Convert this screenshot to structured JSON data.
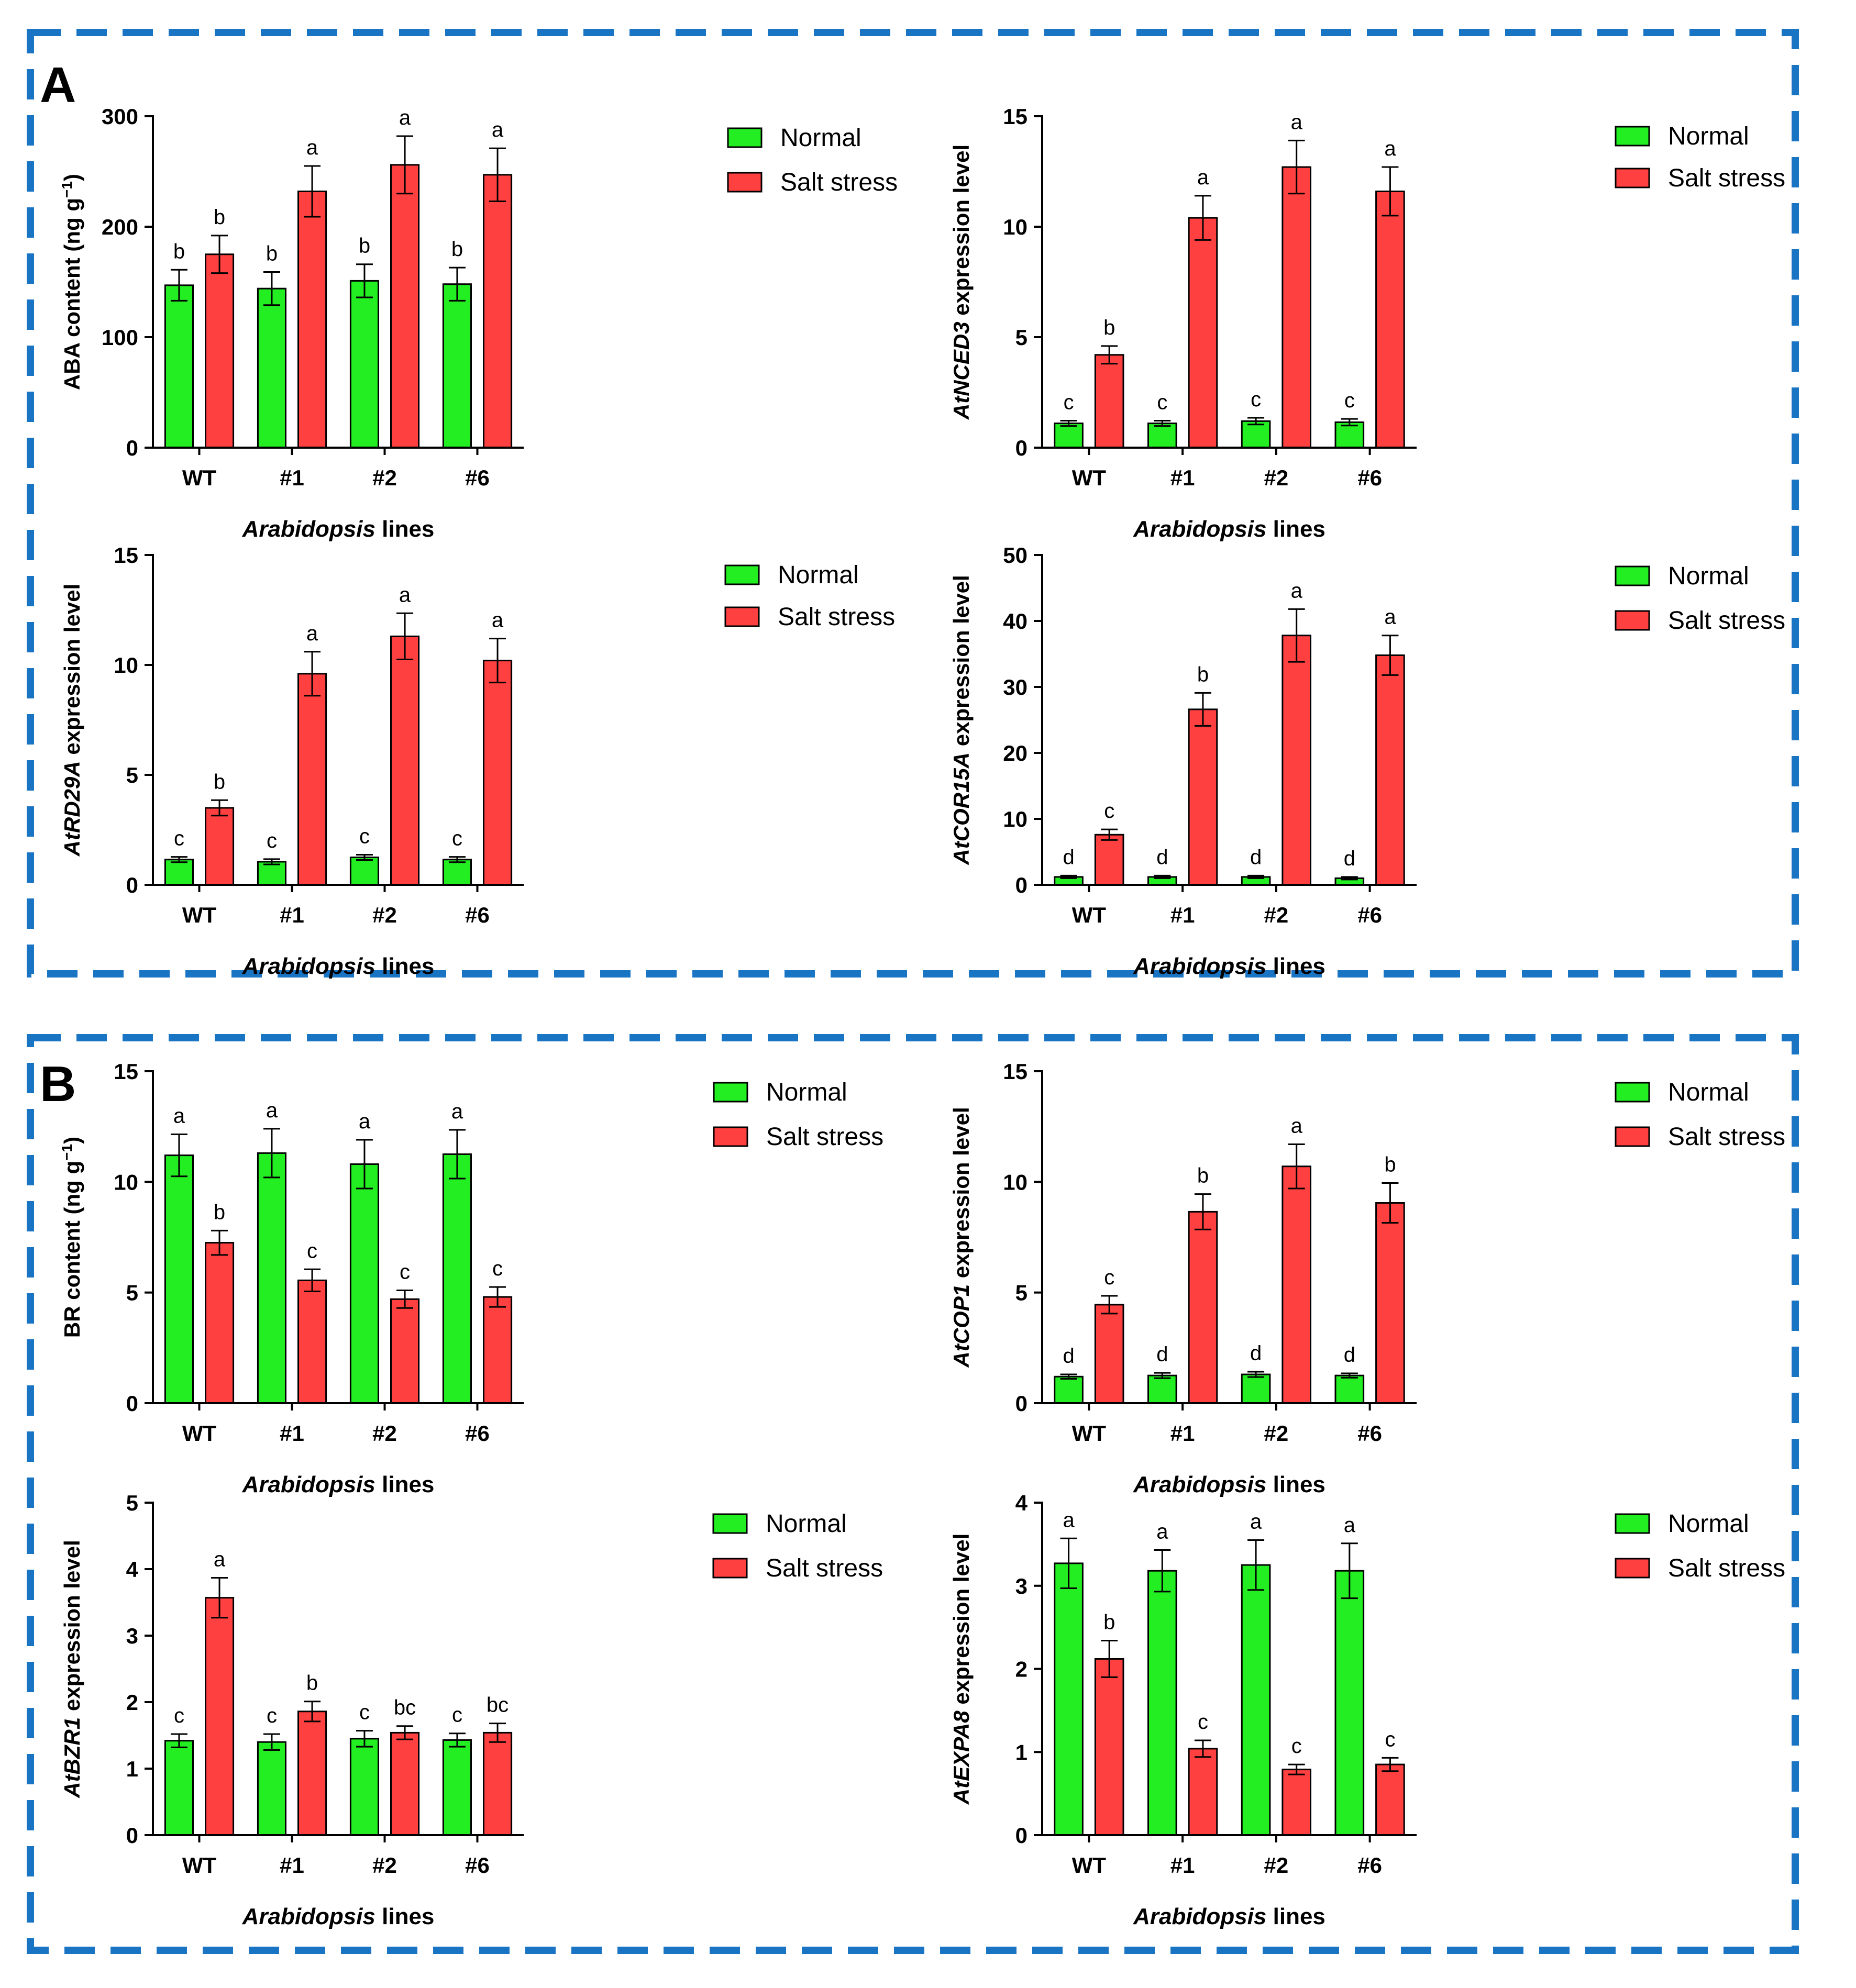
{
  "figure": {
    "colors": {
      "normal": "#22EE22",
      "salt": "#FF4040",
      "border": "#1A74C4"
    },
    "panels": [
      {
        "letter": "A"
      },
      {
        "letter": "B"
      }
    ]
  },
  "chart_data": [
    {
      "type": "bar",
      "panel": "A",
      "ylabel_parts": [
        {
          "text": "ABA content (ng g",
          "italic": false
        },
        {
          "text": "−1",
          "sup": true
        },
        {
          "text": ")",
          "italic": false
        }
      ],
      "xlabel_parts": [
        {
          "text": "Arabidopsis",
          "italic": true
        },
        {
          "text": " lines",
          "italic": false
        }
      ],
      "categories": [
        "WT",
        "#1",
        "#2",
        "#6"
      ],
      "ylim": [
        0,
        300
      ],
      "yticks": [
        0,
        100,
        200,
        300
      ],
      "series": [
        {
          "name": "Normal",
          "color": "#22EE22",
          "values": [
            147,
            144,
            151,
            148
          ],
          "errors": [
            14,
            15,
            15,
            15
          ],
          "labels": [
            "b",
            "b",
            "b",
            "b"
          ]
        },
        {
          "name": "Salt stress",
          "color": "#FF4040",
          "values": [
            175,
            232,
            256,
            247
          ],
          "errors": [
            17,
            23,
            26,
            24
          ],
          "labels": [
            "b",
            "a",
            "a",
            "a"
          ]
        }
      ],
      "legend": "top-right"
    },
    {
      "type": "bar",
      "panel": "A",
      "ylabel_parts": [
        {
          "text": "AtNCED3",
          "italic": true
        },
        {
          "text": " expression level",
          "italic": false
        }
      ],
      "xlabel_parts": [
        {
          "text": "Arabidopsis",
          "italic": true
        },
        {
          "text": " lines",
          "italic": false
        }
      ],
      "categories": [
        "WT",
        "#1",
        "#2",
        "#6"
      ],
      "ylim": [
        0,
        15
      ],
      "yticks": [
        0,
        5,
        10,
        15
      ],
      "series": [
        {
          "name": "Normal",
          "color": "#22EE22",
          "values": [
            1.1,
            1.1,
            1.2,
            1.15
          ],
          "errors": [
            0.12,
            0.12,
            0.15,
            0.15
          ],
          "labels": [
            "c",
            "c",
            "c",
            "c"
          ]
        },
        {
          "name": "Salt stress",
          "color": "#FF4040",
          "values": [
            4.2,
            10.4,
            12.7,
            11.6
          ],
          "errors": [
            0.4,
            1.0,
            1.2,
            1.1
          ],
          "labels": [
            "b",
            "a",
            "a",
            "a"
          ]
        }
      ],
      "legend": "top-right"
    },
    {
      "type": "bar",
      "panel": "A",
      "ylabel_parts": [
        {
          "text": "AtRD29A",
          "italic": true
        },
        {
          "text": " expression level",
          "italic": false
        }
      ],
      "xlabel_parts": [
        {
          "text": "Arabidopsis",
          "italic": true
        },
        {
          "text": " lines",
          "italic": false
        }
      ],
      "categories": [
        "WT",
        "#1",
        "#2",
        "#6"
      ],
      "ylim": [
        0,
        15
      ],
      "yticks": [
        0,
        5,
        10,
        15
      ],
      "series": [
        {
          "name": "Normal",
          "color": "#22EE22",
          "values": [
            1.15,
            1.05,
            1.25,
            1.15
          ],
          "errors": [
            0.12,
            0.12,
            0.12,
            0.12
          ],
          "labels": [
            "c",
            "c",
            "c",
            "c"
          ]
        },
        {
          "name": "Salt stress",
          "color": "#FF4040",
          "values": [
            3.5,
            9.6,
            11.3,
            10.2
          ],
          "errors": [
            0.35,
            1.0,
            1.05,
            1.0
          ],
          "labels": [
            "b",
            "a",
            "a",
            "a"
          ]
        }
      ],
      "legend": "top-right"
    },
    {
      "type": "bar",
      "panel": "A",
      "ylabel_parts": [
        {
          "text": "AtCOR15A",
          "italic": true
        },
        {
          "text": " expression level",
          "italic": false
        }
      ],
      "xlabel_parts": [
        {
          "text": "Arabidopsis",
          "italic": true
        },
        {
          "text": " lines",
          "italic": false
        }
      ],
      "categories": [
        "WT",
        "#1",
        "#2",
        "#6"
      ],
      "ylim": [
        0,
        50
      ],
      "yticks": [
        0,
        10,
        20,
        30,
        40,
        50
      ],
      "series": [
        {
          "name": "Normal",
          "color": "#22EE22",
          "values": [
            1.2,
            1.2,
            1.2,
            1.0
          ],
          "errors": [
            0.2,
            0.2,
            0.2,
            0.2
          ],
          "labels": [
            "d",
            "d",
            "d",
            "d"
          ]
        },
        {
          "name": "Salt stress",
          "color": "#FF4040",
          "values": [
            7.6,
            26.6,
            37.8,
            34.8
          ],
          "errors": [
            0.8,
            2.5,
            4.0,
            3.0
          ],
          "labels": [
            "c",
            "b",
            "a",
            "a"
          ]
        }
      ],
      "legend": "top-right"
    },
    {
      "type": "bar",
      "panel": "B",
      "ylabel_parts": [
        {
          "text": "BR content (ng g",
          "italic": false
        },
        {
          "text": "−1",
          "sup": true
        },
        {
          "text": ")",
          "italic": false
        }
      ],
      "xlabel_parts": [
        {
          "text": "Arabidopsis",
          "italic": true
        },
        {
          "text": " lines",
          "italic": false
        }
      ],
      "categories": [
        "WT",
        "#1",
        "#2",
        "#6"
      ],
      "ylim": [
        0,
        15
      ],
      "yticks": [
        0,
        5,
        10,
        15
      ],
      "series": [
        {
          "name": "Normal",
          "color": "#22EE22",
          "values": [
            11.2,
            11.3,
            10.8,
            11.25
          ],
          "errors": [
            0.95,
            1.1,
            1.1,
            1.1
          ],
          "labels": [
            "a",
            "a",
            "a",
            "a"
          ]
        },
        {
          "name": "Salt stress",
          "color": "#FF4040",
          "values": [
            7.25,
            5.55,
            4.7,
            4.8
          ],
          "errors": [
            0.55,
            0.5,
            0.4,
            0.45
          ],
          "labels": [
            "b",
            "c",
            "c",
            "c"
          ]
        }
      ],
      "legend": "top-right"
    },
    {
      "type": "bar",
      "panel": "B",
      "ylabel_parts": [
        {
          "text": "AtCOP1",
          "italic": true
        },
        {
          "text": " expression level",
          "italic": false
        }
      ],
      "xlabel_parts": [
        {
          "text": "Arabidopsis",
          "italic": true
        },
        {
          "text": " lines",
          "italic": false
        }
      ],
      "categories": [
        "WT",
        "#1",
        "#2",
        "#6"
      ],
      "ylim": [
        0,
        15
      ],
      "yticks": [
        0,
        5,
        10,
        15
      ],
      "series": [
        {
          "name": "Normal",
          "color": "#22EE22",
          "values": [
            1.2,
            1.25,
            1.3,
            1.25
          ],
          "errors": [
            0.1,
            0.12,
            0.12,
            0.1
          ],
          "labels": [
            "d",
            "d",
            "d",
            "d"
          ]
        },
        {
          "name": "Salt stress",
          "color": "#FF4040",
          "values": [
            4.45,
            8.65,
            10.7,
            9.05
          ],
          "errors": [
            0.4,
            0.8,
            1.0,
            0.9
          ],
          "labels": [
            "c",
            "b",
            "a",
            "b"
          ]
        }
      ],
      "legend": "top-right"
    },
    {
      "type": "bar",
      "panel": "B",
      "ylabel_parts": [
        {
          "text": "AtBZR1",
          "italic": true
        },
        {
          "text": " expression level",
          "italic": false
        }
      ],
      "xlabel_parts": [
        {
          "text": "Arabidopsis",
          "italic": true
        },
        {
          "text": " lines",
          "italic": false
        }
      ],
      "categories": [
        "WT",
        "#1",
        "#2",
        "#6"
      ],
      "ylim": [
        0,
        5
      ],
      "yticks": [
        0,
        1,
        2,
        3,
        4,
        5
      ],
      "series": [
        {
          "name": "Normal",
          "color": "#22EE22",
          "values": [
            1.42,
            1.4,
            1.45,
            1.43
          ],
          "errors": [
            0.1,
            0.12,
            0.12,
            0.1
          ],
          "labels": [
            "c",
            "c",
            "c",
            "c"
          ]
        },
        {
          "name": "Salt stress",
          "color": "#FF4040",
          "values": [
            3.57,
            1.86,
            1.54,
            1.54
          ],
          "errors": [
            0.3,
            0.15,
            0.1,
            0.14
          ],
          "labels": [
            "a",
            "b",
            "bc",
            "bc"
          ]
        }
      ],
      "legend": "top-right"
    },
    {
      "type": "bar",
      "panel": "B",
      "ylabel_parts": [
        {
          "text": "AtEXPA8",
          "italic": true
        },
        {
          "text": " expression level",
          "italic": false
        }
      ],
      "xlabel_parts": [
        {
          "text": "Arabidopsis",
          "italic": true
        },
        {
          "text": " lines",
          "italic": false
        }
      ],
      "categories": [
        "WT",
        "#1",
        "#2",
        "#6"
      ],
      "ylim": [
        0,
        4
      ],
      "yticks": [
        0,
        1,
        2,
        3,
        4
      ],
      "series": [
        {
          "name": "Normal",
          "color": "#22EE22",
          "values": [
            3.27,
            3.18,
            3.25,
            3.18
          ],
          "errors": [
            0.3,
            0.25,
            0.3,
            0.33
          ],
          "labels": [
            "a",
            "a",
            "a",
            "a"
          ]
        },
        {
          "name": "Salt stress",
          "color": "#FF4040",
          "values": [
            2.12,
            1.04,
            0.79,
            0.85
          ],
          "errors": [
            0.22,
            0.1,
            0.06,
            0.08
          ],
          "labels": [
            "b",
            "c",
            "c",
            "c"
          ]
        }
      ],
      "legend": "top-right"
    }
  ]
}
